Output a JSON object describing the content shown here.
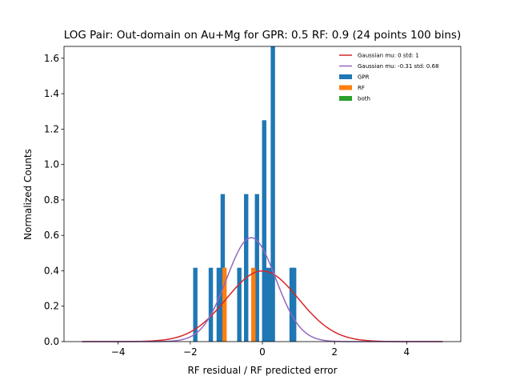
{
  "chart_data": {
    "type": "bar",
    "title": "LOG Pair: Out-domain on Au+Mg for GPR: 0.5 RF: 0.9 (24 points 100 bins)",
    "xlabel": "RF residual / RF predicted error",
    "ylabel": "Normalized Counts",
    "xlim": [
      -5.5,
      5.5
    ],
    "ylim": [
      0,
      1.667
    ],
    "xticks": [
      -4,
      -2,
      0,
      2,
      4
    ],
    "xtick_labels": [
      "−4",
      "−2",
      "0",
      "2",
      "4"
    ],
    "yticks": [
      0.0,
      0.2,
      0.4,
      0.6,
      0.8,
      1.0,
      1.2,
      1.4,
      1.6
    ],
    "ytick_labels": [
      "0.0",
      "0.2",
      "0.4",
      "0.6",
      "0.8",
      "1.0",
      "1.2",
      "1.4",
      "1.6"
    ],
    "grid": false,
    "legend_position": "top-right",
    "bin_width": 0.12,
    "legend": [
      {
        "label": "Gaussian mu: 0 std: 1",
        "kind": "line",
        "color": "#d62728"
      },
      {
        "label": "Gaussian mu: -0.31 std: 0.68",
        "kind": "line",
        "color": "#9467bd"
      },
      {
        "label": "GPR",
        "kind": "bar",
        "color": "#1f77b4"
      },
      {
        "label": "RF",
        "kind": "bar",
        "color": "#ff7f0e"
      },
      {
        "label": "both",
        "kind": "bar",
        "color": "#2ca02c"
      }
    ],
    "series": [
      {
        "name": "GPR",
        "kind": "histogram",
        "color": "#1f77b4",
        "x": [
          -1.86,
          -1.43,
          -1.21,
          -1.1,
          -0.64,
          -0.45,
          -0.15,
          0.05,
          0.12,
          0.21,
          0.29,
          0.81,
          0.88
        ],
        "values": [
          0.417,
          0.417,
          0.417,
          0.833,
          0.417,
          0.833,
          0.833,
          1.25,
          0.417,
          0.417,
          1.667,
          0.417,
          0.417
        ]
      },
      {
        "name": "RF",
        "kind": "histogram",
        "color": "#ff7f0e",
        "x": [
          -1.05,
          -0.25
        ],
        "values": [
          0.417,
          0.417
        ]
      },
      {
        "name": "Gaussian mu: 0 std: 1",
        "kind": "gaussian",
        "color": "#d62728",
        "mu": 0,
        "std": 1,
        "range": [
          -5,
          5
        ]
      },
      {
        "name": "Gaussian mu: -0.31 std: 0.68",
        "kind": "gaussian",
        "color": "#9467bd",
        "mu": -0.31,
        "std": 0.68,
        "range": [
          -5,
          5
        ]
      }
    ]
  }
}
